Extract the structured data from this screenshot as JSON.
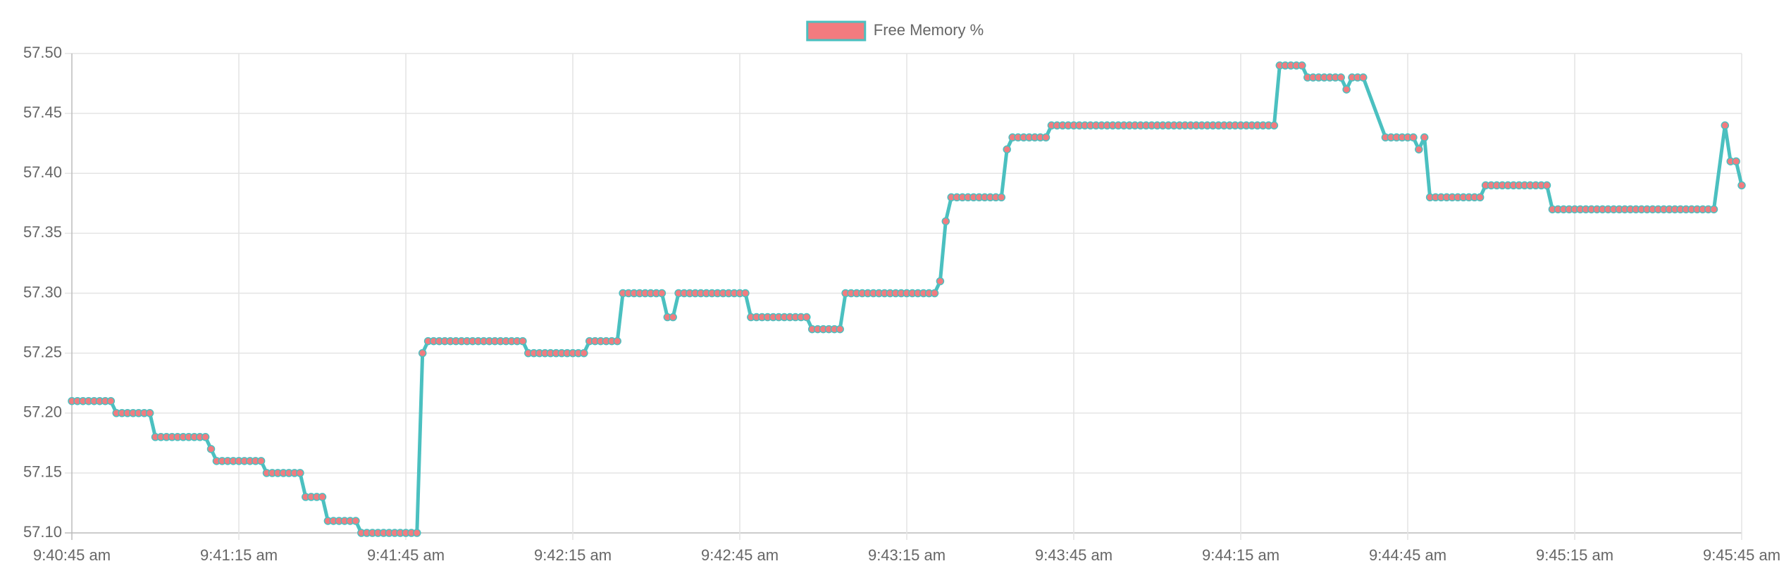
{
  "chart_data": {
    "type": "line",
    "legend_position": "top",
    "grid": true,
    "x": [
      "9:40:45 am",
      "9:40:46 am",
      "9:40:47 am",
      "9:40:48 am",
      "9:40:49 am",
      "9:40:50 am",
      "9:40:51 am",
      "9:40:52 am",
      "9:40:53 am",
      "9:40:54 am",
      "9:40:55 am",
      "9:40:56 am",
      "9:40:57 am",
      "9:40:58 am",
      "9:40:59 am",
      "9:41:00 am",
      "9:41:01 am",
      "9:41:02 am",
      "9:41:03 am",
      "9:41:04 am",
      "9:41:05 am",
      "9:41:06 am",
      "9:41:07 am",
      "9:41:08 am",
      "9:41:09 am",
      "9:41:10 am",
      "9:41:11 am",
      "9:41:12 am",
      "9:41:13 am",
      "9:41:14 am",
      "9:41:15 am",
      "9:41:16 am",
      "9:41:17 am",
      "9:41:18 am",
      "9:41:19 am",
      "9:41:20 am",
      "9:41:21 am",
      "9:41:22 am",
      "9:41:23 am",
      "9:41:24 am",
      "9:41:25 am",
      "9:41:26 am",
      "9:41:27 am",
      "9:41:28 am",
      "9:41:29 am",
      "9:41:30 am",
      "9:41:31 am",
      "9:41:32 am",
      "9:41:33 am",
      "9:41:34 am",
      "9:41:35 am",
      "9:41:36 am",
      "9:41:37 am",
      "9:41:38 am",
      "9:41:39 am",
      "9:41:40 am",
      "9:41:41 am",
      "9:41:42 am",
      "9:41:43 am",
      "9:41:44 am",
      "9:41:45 am",
      "9:41:46 am",
      "9:41:47 am",
      "9:41:48 am",
      "9:41:49 am",
      "9:41:50 am",
      "9:41:51 am",
      "9:41:52 am",
      "9:41:53 am",
      "9:41:54 am",
      "9:41:55 am",
      "9:41:56 am",
      "9:41:57 am",
      "9:41:58 am",
      "9:41:59 am",
      "9:42:00 am",
      "9:42:01 am",
      "9:42:02 am",
      "9:42:03 am",
      "9:42:04 am",
      "9:42:05 am",
      "9:42:06 am",
      "9:42:07 am",
      "9:42:08 am",
      "9:42:09 am",
      "9:42:10 am",
      "9:42:11 am",
      "9:42:12 am",
      "9:42:13 am",
      "9:42:14 am",
      "9:42:15 am",
      "9:42:16 am",
      "9:42:17 am",
      "9:42:18 am",
      "9:42:19 am",
      "9:42:20 am",
      "9:42:21 am",
      "9:42:22 am",
      "9:42:23 am",
      "9:42:24 am",
      "9:42:25 am",
      "9:42:26 am",
      "9:42:27 am",
      "9:42:28 am",
      "9:42:29 am",
      "9:42:30 am",
      "9:42:31 am",
      "9:42:32 am",
      "9:42:33 am",
      "9:42:34 am",
      "9:42:35 am",
      "9:42:36 am",
      "9:42:37 am",
      "9:42:38 am",
      "9:42:39 am",
      "9:42:40 am",
      "9:42:41 am",
      "9:42:42 am",
      "9:42:43 am",
      "9:42:44 am",
      "9:42:45 am",
      "9:42:46 am",
      "9:42:47 am",
      "9:42:48 am",
      "9:42:49 am",
      "9:42:50 am",
      "9:42:51 am",
      "9:42:52 am",
      "9:42:53 am",
      "9:42:54 am",
      "9:42:55 am",
      "9:42:56 am",
      "9:42:57 am",
      "9:42:58 am",
      "9:42:59 am",
      "9:43:00 am",
      "9:43:01 am",
      "9:43:02 am",
      "9:43:03 am",
      "9:43:04 am",
      "9:43:05 am",
      "9:43:06 am",
      "9:43:07 am",
      "9:43:08 am",
      "9:43:09 am",
      "9:43:10 am",
      "9:43:11 am",
      "9:43:12 am",
      "9:43:13 am",
      "9:43:14 am",
      "9:43:15 am",
      "9:43:16 am",
      "9:43:17 am",
      "9:43:18 am",
      "9:43:19 am",
      "9:43:20 am",
      "9:43:21 am",
      "9:43:22 am",
      "9:43:23 am",
      "9:43:24 am",
      "9:43:25 am",
      "9:43:26 am",
      "9:43:27 am",
      "9:43:28 am",
      "9:43:29 am",
      "9:43:30 am",
      "9:43:31 am",
      "9:43:32 am",
      "9:43:33 am",
      "9:43:34 am",
      "9:43:35 am",
      "9:43:36 am",
      "9:43:37 am",
      "9:43:38 am",
      "9:43:39 am",
      "9:43:40 am",
      "9:43:41 am",
      "9:43:42 am",
      "9:43:43 am",
      "9:43:44 am",
      "9:43:45 am",
      "9:43:46 am",
      "9:43:47 am",
      "9:43:48 am",
      "9:43:49 am",
      "9:43:50 am",
      "9:43:51 am",
      "9:43:52 am",
      "9:43:53 am",
      "9:43:54 am",
      "9:43:55 am",
      "9:43:56 am",
      "9:43:57 am",
      "9:43:58 am",
      "9:43:59 am",
      "9:44:00 am",
      "9:44:01 am",
      "9:44:02 am",
      "9:44:03 am",
      "9:44:04 am",
      "9:44:05 am",
      "9:44:06 am",
      "9:44:07 am",
      "9:44:08 am",
      "9:44:09 am",
      "9:44:10 am",
      "9:44:11 am",
      "9:44:12 am",
      "9:44:13 am",
      "9:44:14 am",
      "9:44:15 am",
      "9:44:16 am",
      "9:44:17 am",
      "9:44:18 am",
      "9:44:19 am",
      "9:44:20 am",
      "9:44:21 am",
      "9:44:22 am",
      "9:44:23 am",
      "9:44:24 am",
      "9:44:25 am",
      "9:44:26 am",
      "9:44:27 am",
      "9:44:28 am",
      "9:44:29 am",
      "9:44:30 am",
      "9:44:31 am",
      "9:44:32 am",
      "9:44:33 am",
      "9:44:34 am",
      "9:44:35 am",
      "9:44:36 am",
      "9:44:37 am",
      "9:44:41 am",
      "9:44:42 am",
      "9:44:43 am",
      "9:44:44 am",
      "9:44:45 am",
      "9:44:46 am",
      "9:44:47 am",
      "9:44:48 am",
      "9:44:49 am",
      "9:44:50 am",
      "9:44:51 am",
      "9:44:52 am",
      "9:44:53 am",
      "9:44:54 am",
      "9:44:55 am",
      "9:44:56 am",
      "9:44:57 am",
      "9:44:58 am",
      "9:44:59 am",
      "9:45:00 am",
      "9:45:01 am",
      "9:45:02 am",
      "9:45:03 am",
      "9:45:04 am",
      "9:45:05 am",
      "9:45:06 am",
      "9:45:07 am",
      "9:45:08 am",
      "9:45:09 am",
      "9:45:10 am",
      "9:45:11 am",
      "9:45:12 am",
      "9:45:13 am",
      "9:45:14 am",
      "9:45:15 am",
      "9:45:16 am",
      "9:45:17 am",
      "9:45:18 am",
      "9:45:19 am",
      "9:45:20 am",
      "9:45:21 am",
      "9:45:22 am",
      "9:45:23 am",
      "9:45:24 am",
      "9:45:25 am",
      "9:45:26 am",
      "9:45:27 am",
      "9:45:28 am",
      "9:45:29 am",
      "9:45:30 am",
      "9:45:31 am",
      "9:45:32 am",
      "9:45:33 am",
      "9:45:34 am",
      "9:45:35 am",
      "9:45:36 am",
      "9:45:37 am",
      "9:45:38 am",
      "9:45:39 am",
      "9:45:40 am",
      "9:45:42 am",
      "9:45:43 am",
      "9:45:44 am",
      "9:45:45 am"
    ],
    "series": [
      {
        "name": "Free Memory %",
        "color": "#4bc0c0",
        "point_color": "#f27b7f",
        "values": [
          57.21,
          57.21,
          57.21,
          57.21,
          57.21,
          57.21,
          57.21,
          57.21,
          57.2,
          57.2,
          57.2,
          57.2,
          57.2,
          57.2,
          57.2,
          57.18,
          57.18,
          57.18,
          57.18,
          57.18,
          57.18,
          57.18,
          57.18,
          57.18,
          57.18,
          57.17,
          57.16,
          57.16,
          57.16,
          57.16,
          57.16,
          57.16,
          57.16,
          57.16,
          57.16,
          57.15,
          57.15,
          57.15,
          57.15,
          57.15,
          57.15,
          57.15,
          57.13,
          57.13,
          57.13,
          57.13,
          57.11,
          57.11,
          57.11,
          57.11,
          57.11,
          57.11,
          57.1,
          57.1,
          57.1,
          57.1,
          57.1,
          57.1,
          57.1,
          57.1,
          57.1,
          57.1,
          57.1,
          57.25,
          57.26,
          57.26,
          57.26,
          57.26,
          57.26,
          57.26,
          57.26,
          57.26,
          57.26,
          57.26,
          57.26,
          57.26,
          57.26,
          57.26,
          57.26,
          57.26,
          57.26,
          57.26,
          57.25,
          57.25,
          57.25,
          57.25,
          57.25,
          57.25,
          57.25,
          57.25,
          57.25,
          57.25,
          57.25,
          57.26,
          57.26,
          57.26,
          57.26,
          57.26,
          57.26,
          57.3,
          57.3,
          57.3,
          57.3,
          57.3,
          57.3,
          57.3,
          57.3,
          57.28,
          57.28,
          57.3,
          57.3,
          57.3,
          57.3,
          57.3,
          57.3,
          57.3,
          57.3,
          57.3,
          57.3,
          57.3,
          57.3,
          57.3,
          57.28,
          57.28,
          57.28,
          57.28,
          57.28,
          57.28,
          57.28,
          57.28,
          57.28,
          57.28,
          57.28,
          57.27,
          57.27,
          57.27,
          57.27,
          57.27,
          57.27,
          57.3,
          57.3,
          57.3,
          57.3,
          57.3,
          57.3,
          57.3,
          57.3,
          57.3,
          57.3,
          57.3,
          57.3,
          57.3,
          57.3,
          57.3,
          57.3,
          57.3,
          57.31,
          57.36,
          57.38,
          57.38,
          57.38,
          57.38,
          57.38,
          57.38,
          57.38,
          57.38,
          57.38,
          57.38,
          57.42,
          57.43,
          57.43,
          57.43,
          57.43,
          57.43,
          57.43,
          57.43,
          57.44,
          57.44,
          57.44,
          57.44,
          57.44,
          57.44,
          57.44,
          57.44,
          57.44,
          57.44,
          57.44,
          57.44,
          57.44,
          57.44,
          57.44,
          57.44,
          57.44,
          57.44,
          57.44,
          57.44,
          57.44,
          57.44,
          57.44,
          57.44,
          57.44,
          57.44,
          57.44,
          57.44,
          57.44,
          57.44,
          57.44,
          57.44,
          57.44,
          57.44,
          57.44,
          57.44,
          57.44,
          57.44,
          57.44,
          57.44,
          57.44,
          57.49,
          57.49,
          57.49,
          57.49,
          57.49,
          57.48,
          57.48,
          57.48,
          57.48,
          57.48,
          57.48,
          57.48,
          57.47,
          57.48,
          57.48,
          57.48,
          57.43,
          57.43,
          57.43,
          57.43,
          57.43,
          57.43,
          57.42,
          57.43,
          57.38,
          57.38,
          57.38,
          57.38,
          57.38,
          57.38,
          57.38,
          57.38,
          57.38,
          57.38,
          57.39,
          57.39,
          57.39,
          57.39,
          57.39,
          57.39,
          57.39,
          57.39,
          57.39,
          57.39,
          57.39,
          57.39,
          57.37,
          57.37,
          57.37,
          57.37,
          57.37,
          57.37,
          57.37,
          57.37,
          57.37,
          57.37,
          57.37,
          57.37,
          57.37,
          57.37,
          57.37,
          57.37,
          57.37,
          57.37,
          57.37,
          57.37,
          57.37,
          57.37,
          57.37,
          57.37,
          57.37,
          57.37,
          57.37,
          57.37,
          57.37,
          57.37,
          57.44,
          57.41,
          57.41,
          57.39
        ]
      }
    ],
    "xlim": [
      "9:40:45 am",
      "9:45:45 am"
    ],
    "xticks": [
      "9:40:45 am",
      "9:41:15 am",
      "9:41:45 am",
      "9:42:15 am",
      "9:42:45 am",
      "9:43:15 am",
      "9:43:45 am",
      "9:44:15 am",
      "9:44:45 am",
      "9:45:15 am",
      "9:45:45 am"
    ],
    "ylim": [
      57.1,
      57.5
    ],
    "yticks": [
      {
        "value": 57.1,
        "label": "57.10"
      },
      {
        "value": 57.15,
        "label": "57.15"
      },
      {
        "value": 57.2,
        "label": "57.20"
      },
      {
        "value": 57.25,
        "label": "57.25"
      },
      {
        "value": 57.3,
        "label": "57.30"
      },
      {
        "value": 57.35,
        "label": "57.35"
      },
      {
        "value": 57.4,
        "label": "57.40"
      },
      {
        "value": 57.45,
        "label": "57.45"
      },
      {
        "value": 57.5,
        "label": "57.50"
      }
    ]
  }
}
